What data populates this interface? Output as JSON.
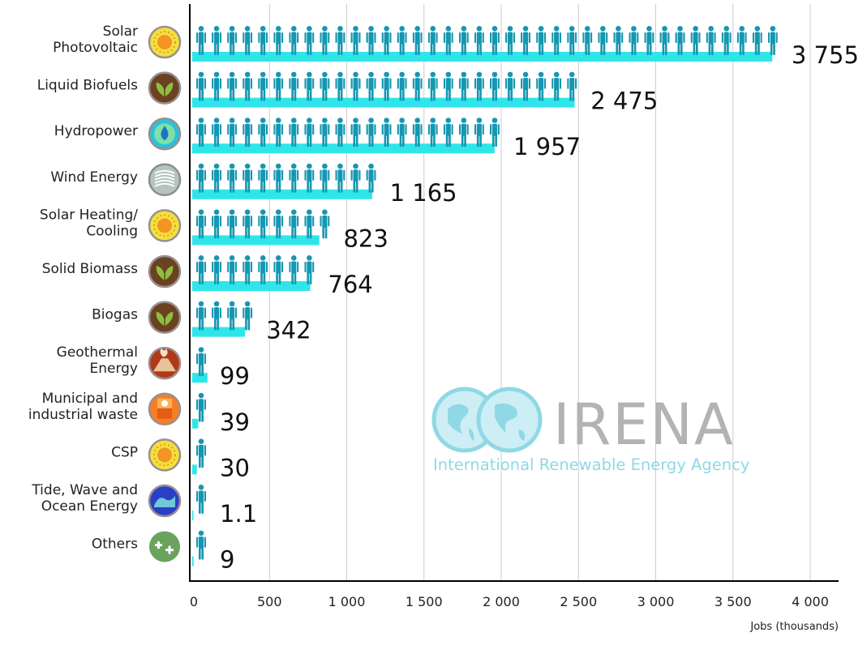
{
  "chart_data": {
    "type": "bar",
    "orientation": "horizontal",
    "categories": [
      "Solar Photovoltaic",
      "Liquid Biofuels",
      "Hydropower",
      "Wind Energy",
      "Solar Heating/ Cooling",
      "Solid Biomass",
      "Biogas",
      "Geothermal Energy",
      "Municipal and industrial waste",
      "CSP",
      "Tide, Wave and Ocean Energy",
      "Others"
    ],
    "category_lines": [
      [
        "Solar",
        "Photovoltaic"
      ],
      [
        "Liquid Biofuels"
      ],
      [
        "Hydropower"
      ],
      [
        "Wind Energy"
      ],
      [
        "Solar Heating/",
        "Cooling"
      ],
      [
        "Solid Biomass"
      ],
      [
        "Biogas"
      ],
      [
        "Geothermal",
        "Energy"
      ],
      [
        "Municipal and",
        "industrial waste"
      ],
      [
        "CSP"
      ],
      [
        "Tide, Wave and",
        "Ocean Energy"
      ],
      [
        "Others"
      ]
    ],
    "values": [
      3755,
      2475,
      1957,
      1165,
      823,
      764,
      342,
      99,
      39,
      30,
      1.1,
      9
    ],
    "value_labels": [
      "3 755",
      "2 475",
      "1 957",
      "1 165",
      "823",
      "764",
      "342",
      "99",
      "39",
      "30",
      "1.1",
      "9"
    ],
    "icons": [
      "sun-icon",
      "leaf-icon",
      "water-drop-icon",
      "wind-icon",
      "sun-icon",
      "leaf-icon",
      "leaf-icon",
      "volcano-icon",
      "waste-bin-icon",
      "sun-icon",
      "wave-icon",
      "plus-icon"
    ],
    "xlabel": "Jobs (thousands)",
    "xlim": [
      0,
      4200
    ],
    "xticks": [
      0,
      500,
      1000,
      1500,
      2000,
      2500,
      3000,
      3500,
      4000
    ],
    "xtick_labels": [
      "0",
      "500",
      "1 000",
      "1 500",
      "2 000",
      "2 500",
      "3 000",
      "3 500",
      "4 000"
    ],
    "grid": true,
    "people_per_icon": 100
  },
  "watermark": {
    "title": "IRENA",
    "subtitle": "International Renewable Energy Agency"
  },
  "colors": {
    "bar": "#2ee6ea",
    "person": "#1497b0",
    "grid": "#cccccc",
    "axis": "#000000",
    "watermark_blue": "#8fd8e6",
    "watermark_gray": "#b3b3b3"
  }
}
